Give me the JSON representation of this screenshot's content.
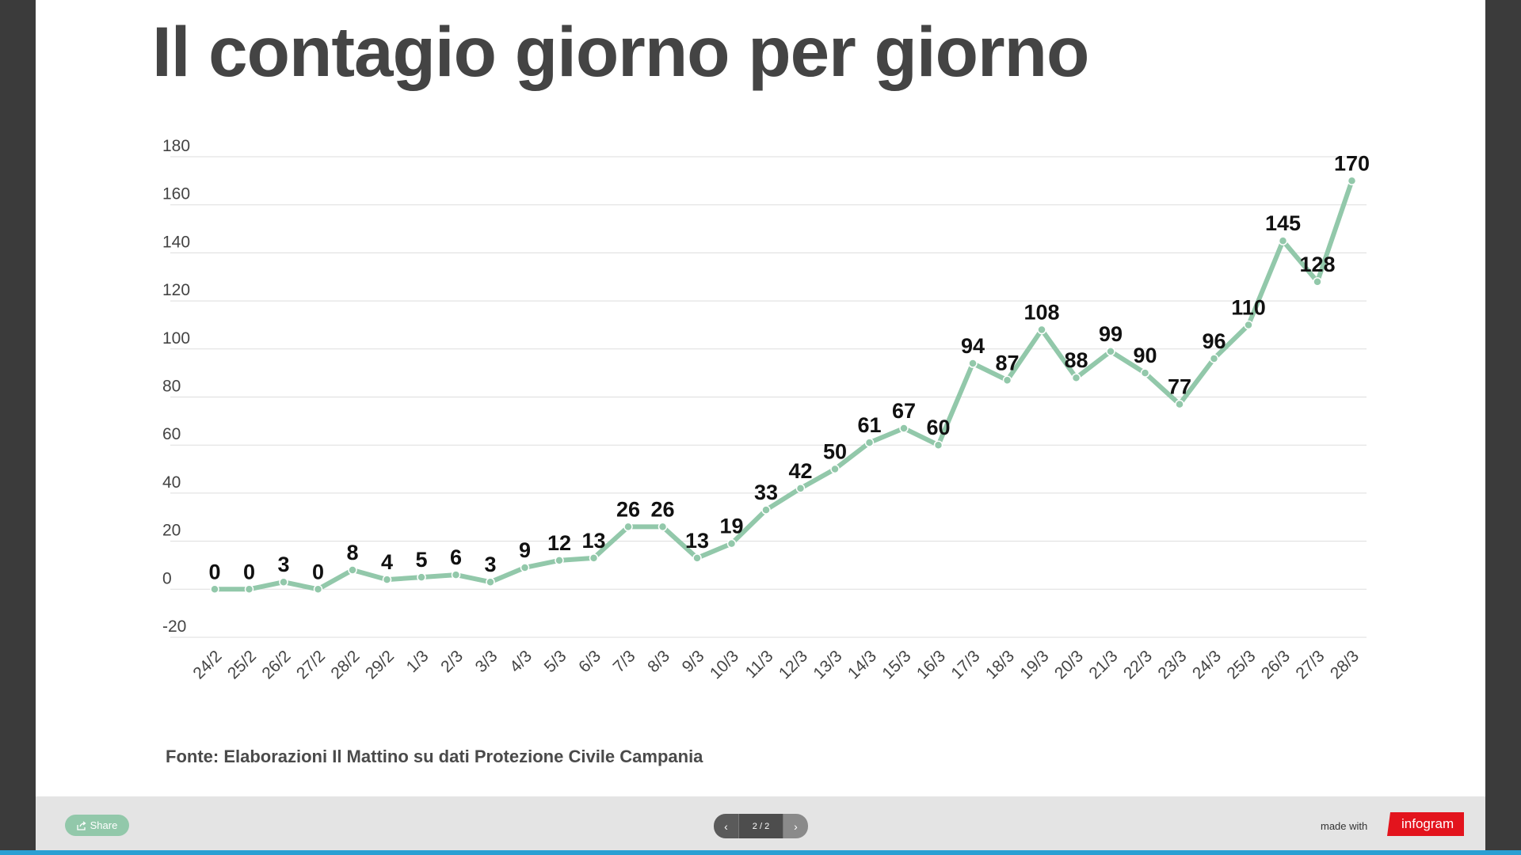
{
  "title": "Il contagio giorno per giorno",
  "source": "Fonte: Elaborazioni Il Mattino su dati Protezione Civile Campania",
  "footer": {
    "share_label": "Share",
    "page_indicator": "2 / 2",
    "made_with": "made with",
    "brand": "infogram"
  },
  "colors": {
    "line": "#92c8aa",
    "title": "#444444",
    "brand": "#e3141d",
    "footer_bg": "#e4e4e4",
    "accent_bar": "#2b9fd3"
  },
  "chart_data": {
    "type": "line",
    "categories": [
      "24/2",
      "25/2",
      "26/2",
      "27/2",
      "28/2",
      "29/2",
      "1/3",
      "2/3",
      "3/3",
      "4/3",
      "5/3",
      "6/3",
      "7/3",
      "8/3",
      "9/3",
      "10/3",
      "11/3",
      "12/3",
      "13/3",
      "14/3",
      "15/3",
      "16/3",
      "17/3",
      "18/3",
      "19/3",
      "20/3",
      "21/3",
      "22/3",
      "23/3",
      "24/3",
      "25/3",
      "26/3",
      "27/3",
      "28/3"
    ],
    "values": [
      0,
      0,
      3,
      0,
      8,
      4,
      5,
      6,
      3,
      9,
      12,
      13,
      26,
      26,
      13,
      19,
      33,
      42,
      50,
      61,
      67,
      60,
      94,
      87,
      108,
      88,
      99,
      90,
      77,
      96,
      110,
      145,
      128,
      170
    ],
    "ylim": [
      -20,
      180
    ],
    "yticks": [
      -20,
      0,
      20,
      40,
      60,
      80,
      100,
      120,
      140,
      160,
      180
    ],
    "grid": true,
    "data_labels": true,
    "legend": "none"
  }
}
